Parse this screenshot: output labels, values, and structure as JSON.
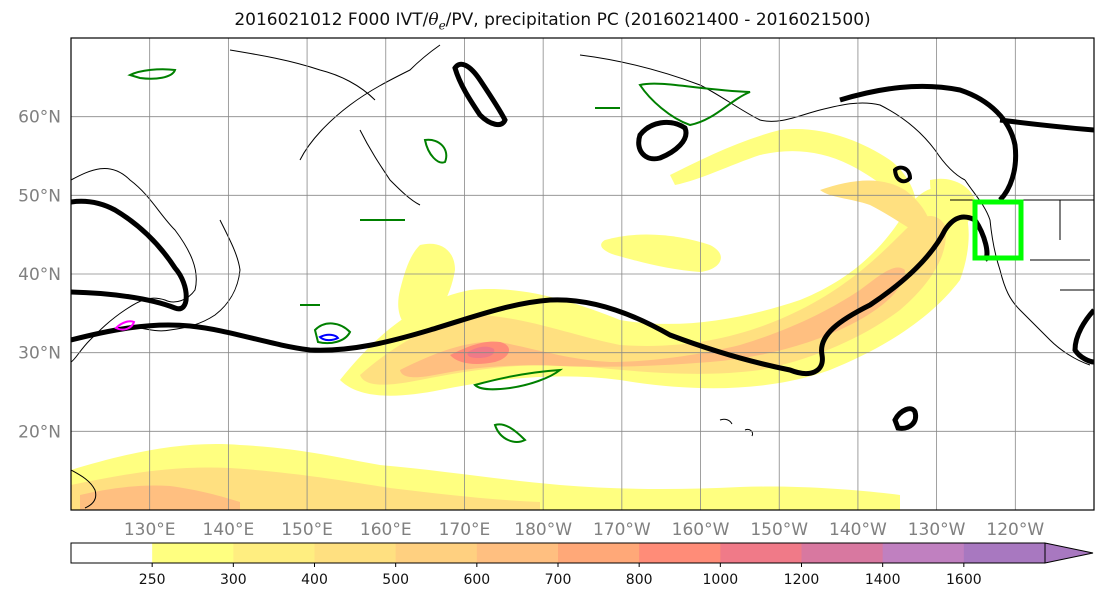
{
  "title": {
    "prefix": "2016021012 F000 IVT/",
    "theta": "θ",
    "sub": "e",
    "suffix": "/PV, precipitation PC (2016021400 - 2016021500)"
  },
  "map": {
    "lat_labels": [
      "60°N",
      "50°N",
      "40°N",
      "30°N",
      "20°N"
    ],
    "lat_values": [
      60,
      50,
      40,
      30,
      20
    ],
    "lon_labels": [
      "130°E",
      "140°E",
      "150°E",
      "160°E",
      "170°E",
      "180°W",
      "170°W",
      "160°W",
      "150°W",
      "140°W",
      "130°W",
      "120°W"
    ],
    "lon_values": [
      130,
      140,
      150,
      160,
      170,
      180,
      190,
      200,
      210,
      220,
      230,
      240
    ],
    "lat_range": [
      10,
      70
    ],
    "lon_range": [
      120,
      250
    ],
    "grid": true
  },
  "colorbar": {
    "ticks": [
      "250",
      "300",
      "400",
      "500",
      "600",
      "700",
      "800",
      "1000",
      "1200",
      "1400",
      "1600"
    ],
    "colors": [
      "#ffffff",
      "#ffff80",
      "#ffee80",
      "#ffe080",
      "#ffd080",
      "#ffbf80",
      "#ffa878",
      "#ff8c78",
      "#f07a88",
      "#d878a0",
      "#c080c0",
      "#a878c0"
    ],
    "extend": "max"
  },
  "colors": {
    "land_outline": "#000000",
    "pv_contour": "#000000",
    "theta_contour": "#008000",
    "box": "#00ff00",
    "blue_contour": "#0000ff",
    "magenta_contour": "#ff00ff"
  }
}
